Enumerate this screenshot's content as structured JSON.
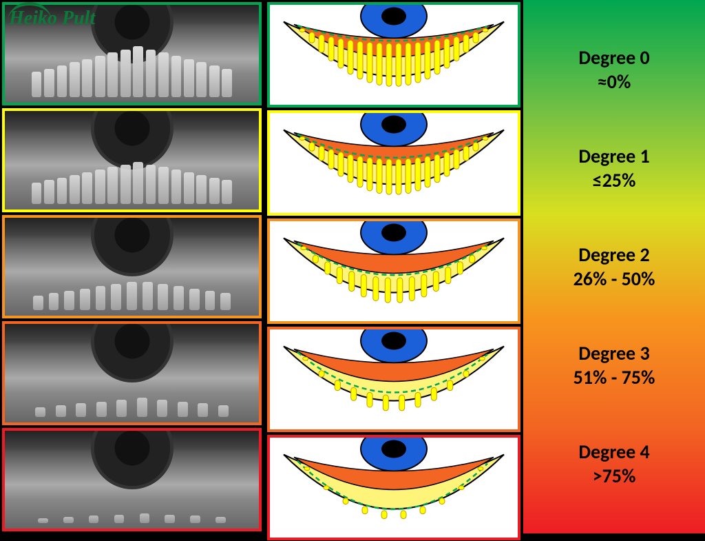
{
  "logo_text": "Heiko Pult",
  "grades": [
    {
      "title": "Degree 0",
      "range": "≈0%",
      "color": "#00a650",
      "gland_count": 20,
      "gland_height": 0.95,
      "dash_top": 0.05
    },
    {
      "title": "Degree 1",
      "range": "≤25%",
      "color": "#ffff00",
      "gland_count": 20,
      "gland_height": 0.78,
      "dash_top": 0.22
    },
    {
      "title": "Degree 2",
      "range": "26% - 50%",
      "color": "#f7941e",
      "gland_count": 16,
      "gland_height": 0.55,
      "dash_top": 0.4
    },
    {
      "title": "Degree 3",
      "range": "51% - 75%",
      "color": "#f26522",
      "gland_count": 12,
      "gland_height": 0.35,
      "dash_top": 0.58
    },
    {
      "title": "Degree 4",
      "range": ">75%",
      "color": "#ed1c24",
      "gland_count": 10,
      "gland_height": 0.18,
      "dash_top": 0.75
    }
  ],
  "diagram_style": {
    "iris_color": "#1b5fd9",
    "pupil_color": "#000000",
    "eyelid_outer": "#fff47a",
    "eyelid_inner": "#f26522",
    "gland_fill": "#ffff00",
    "gland_stroke": "#c79a00",
    "dash_color": "#00a650",
    "outline": "#000000"
  },
  "scale_gradient": [
    "#00a650",
    "#6fbf44",
    "#d8df20",
    "#f7941e",
    "#f26522",
    "#ed1c24"
  ],
  "scale_text_color": "#000000",
  "scale_fontsize": 28
}
